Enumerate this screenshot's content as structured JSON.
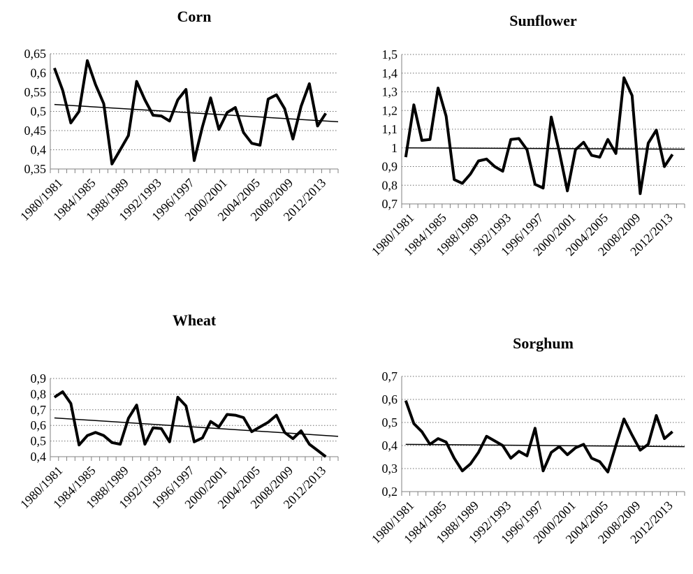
{
  "chart_data": [
    {
      "type": "line",
      "title": "Corn",
      "xlabel": "",
      "ylabel": "",
      "x": [
        "1980/1981",
        "1981/1982",
        "1982/1983",
        "1983/1984",
        "1984/1985",
        "1985/1986",
        "1986/1987",
        "1987/1988",
        "1988/1989",
        "1989/1990",
        "1990/1991",
        "1991/1992",
        "1992/1993",
        "1993/1994",
        "1994/1995",
        "1995/1996",
        "1996/1997",
        "1997/1998",
        "1998/1999",
        "1999/2000",
        "2000/2001",
        "2001/2002",
        "2002/2003",
        "2003/2004",
        "2004/2005",
        "2005/2006",
        "2006/2007",
        "2007/2008",
        "2008/2009",
        "2009/2010",
        "2010/2011",
        "2011/2012",
        "2012/2013",
        "2013/2014",
        "2014/2015"
      ],
      "x_tick_labels": [
        "1980/1981",
        "1984/1985",
        "1988/1989",
        "1992/1993",
        "1996/1997",
        "2000/2001",
        "2004/2005",
        "2008/2009",
        "2012/2013"
      ],
      "series": [
        {
          "values": [
            0.613,
            0.555,
            0.47,
            0.5,
            0.632,
            0.57,
            0.52,
            0.363,
            0.4,
            0.437,
            0.578,
            0.53,
            0.49,
            0.488,
            0.475,
            0.53,
            0.557,
            0.372,
            0.46,
            0.535,
            0.453,
            0.497,
            0.51,
            0.445,
            0.417,
            0.412,
            0.532,
            0.543,
            0.507,
            0.428,
            0.513,
            0.572,
            0.462,
            0.495,
            null
          ]
        }
      ],
      "trendline": [
        0.518,
        0.473
      ],
      "ylim": [
        0.35,
        0.65
      ],
      "yticks": [
        "0,35",
        "0,4",
        "0,45",
        "0,5",
        "0,55",
        "0,6",
        "0,65"
      ],
      "grid": "horizontal dotted"
    },
    {
      "type": "line",
      "title": "Sunflower",
      "xlabel": "",
      "ylabel": "",
      "x": [
        "1980/1981",
        "1981/1982",
        "1982/1983",
        "1983/1984",
        "1984/1985",
        "1985/1986",
        "1986/1987",
        "1987/1988",
        "1988/1989",
        "1989/1990",
        "1990/1991",
        "1991/1992",
        "1992/1993",
        "1993/1994",
        "1994/1995",
        "1995/1996",
        "1996/1997",
        "1997/1998",
        "1998/1999",
        "1999/2000",
        "2000/2001",
        "2001/2002",
        "2002/2003",
        "2003/2004",
        "2004/2005",
        "2005/2006",
        "2006/2007",
        "2007/2008",
        "2008/2009",
        "2009/2010",
        "2010/2011",
        "2011/2012",
        "2012/2013",
        "2013/2014",
        "2014/2015"
      ],
      "x_tick_labels": [
        "1980/1981",
        "1984/1985",
        "1988/1989",
        "1992/1993",
        "1996/1997",
        "2000/2001",
        "2004/2005",
        "2008/2009",
        "2012/2013"
      ],
      "series": [
        {
          "values": [
            0.95,
            1.23,
            1.04,
            1.045,
            1.32,
            1.17,
            0.83,
            0.81,
            0.86,
            0.93,
            0.94,
            0.9,
            0.875,
            1.045,
            1.05,
            0.99,
            0.805,
            0.785,
            1.165,
            0.98,
            0.77,
            0.99,
            1.03,
            0.96,
            0.95,
            1.045,
            0.97,
            1.375,
            1.28,
            0.755,
            1.025,
            1.095,
            0.9,
            0.965,
            null
          ]
        }
      ],
      "trendline": [
        1.0,
        0.993
      ],
      "ylim": [
        0.7,
        1.5
      ],
      "yticks": [
        "0,7",
        "0,8",
        "0,9",
        "1",
        "1,1",
        "1,2",
        "1,3",
        "1,4",
        "1,5"
      ],
      "grid": "horizontal dotted"
    },
    {
      "type": "line",
      "title": "Wheat",
      "xlabel": "",
      "ylabel": "",
      "x": [
        "1980/1981",
        "1981/1982",
        "1982/1983",
        "1983/1984",
        "1984/1985",
        "1985/1986",
        "1986/1987",
        "1987/1988",
        "1988/1989",
        "1989/1990",
        "1990/1991",
        "1991/1992",
        "1992/1993",
        "1993/1994",
        "1994/1995",
        "1995/1996",
        "1996/1997",
        "1997/1998",
        "1998/1999",
        "1999/2000",
        "2000/2001",
        "2001/2002",
        "2002/2003",
        "2003/2004",
        "2004/2005",
        "2005/2006",
        "2006/2007",
        "2007/2008",
        "2008/2009",
        "2009/2010",
        "2010/2011",
        "2011/2012",
        "2012/2013",
        "2013/2014",
        "2014/2015"
      ],
      "x_tick_labels": [
        "1980/1981",
        "1984/1985",
        "1988/1989",
        "1992/1993",
        "1996/1997",
        "2000/2001",
        "2004/2005",
        "2008/2009",
        "2012/2013"
      ],
      "series": [
        {
          "values": [
            0.78,
            0.815,
            0.74,
            0.475,
            0.535,
            0.555,
            0.535,
            0.49,
            0.48,
            0.645,
            0.73,
            0.48,
            0.585,
            0.58,
            0.495,
            0.78,
            0.725,
            0.495,
            0.52,
            0.625,
            0.59,
            0.67,
            0.665,
            0.65,
            0.56,
            0.59,
            0.62,
            0.665,
            0.555,
            0.515,
            0.565,
            0.48,
            0.44,
            0.4,
            null
          ]
        }
      ],
      "trendline": [
        0.648,
        0.53
      ],
      "ylim": [
        0.4,
        0.9
      ],
      "yticks": [
        "0,4",
        "0,5",
        "0,6",
        "0,7",
        "0,8",
        "0,9"
      ],
      "grid": "horizontal dotted"
    },
    {
      "type": "line",
      "title": "Sorghum",
      "xlabel": "",
      "ylabel": "",
      "x": [
        "1980/1981",
        "1981/1982",
        "1982/1983",
        "1983/1984",
        "1984/1985",
        "1985/1986",
        "1986/1987",
        "1987/1988",
        "1988/1989",
        "1989/1990",
        "1990/1991",
        "1991/1992",
        "1992/1993",
        "1993/1994",
        "1994/1995",
        "1995/1996",
        "1996/1997",
        "1997/1998",
        "1998/1999",
        "1999/2000",
        "2000/2001",
        "2001/2002",
        "2002/2003",
        "2003/2004",
        "2004/2005",
        "2005/2006",
        "2006/2007",
        "2007/2008",
        "2008/2009",
        "2009/2010",
        "2010/2011",
        "2011/2012",
        "2012/2013",
        "2013/2014",
        "2014/2015"
      ],
      "x_tick_labels": [
        "1980/1981",
        "1984/1985",
        "1988/1989",
        "1992/1993",
        "1996/1997",
        "2000/2001",
        "2004/2005",
        "2008/2009",
        "2012/2013"
      ],
      "series": [
        {
          "values": [
            0.595,
            0.495,
            0.46,
            0.405,
            0.43,
            0.415,
            0.345,
            0.29,
            0.32,
            0.37,
            0.44,
            0.42,
            0.4,
            0.345,
            0.375,
            0.355,
            0.475,
            0.29,
            0.37,
            0.395,
            0.36,
            0.39,
            0.405,
            0.345,
            0.33,
            0.285,
            0.4,
            0.515,
            0.445,
            0.38,
            0.405,
            0.53,
            0.43,
            0.46,
            null
          ]
        }
      ],
      "trendline": [
        0.405,
        0.395
      ],
      "ylim": [
        0.2,
        0.7
      ],
      "yticks": [
        "0,2",
        "0,3",
        "0,4",
        "0,5",
        "0,6",
        "0,7"
      ],
      "grid": "horizontal dotted"
    }
  ]
}
